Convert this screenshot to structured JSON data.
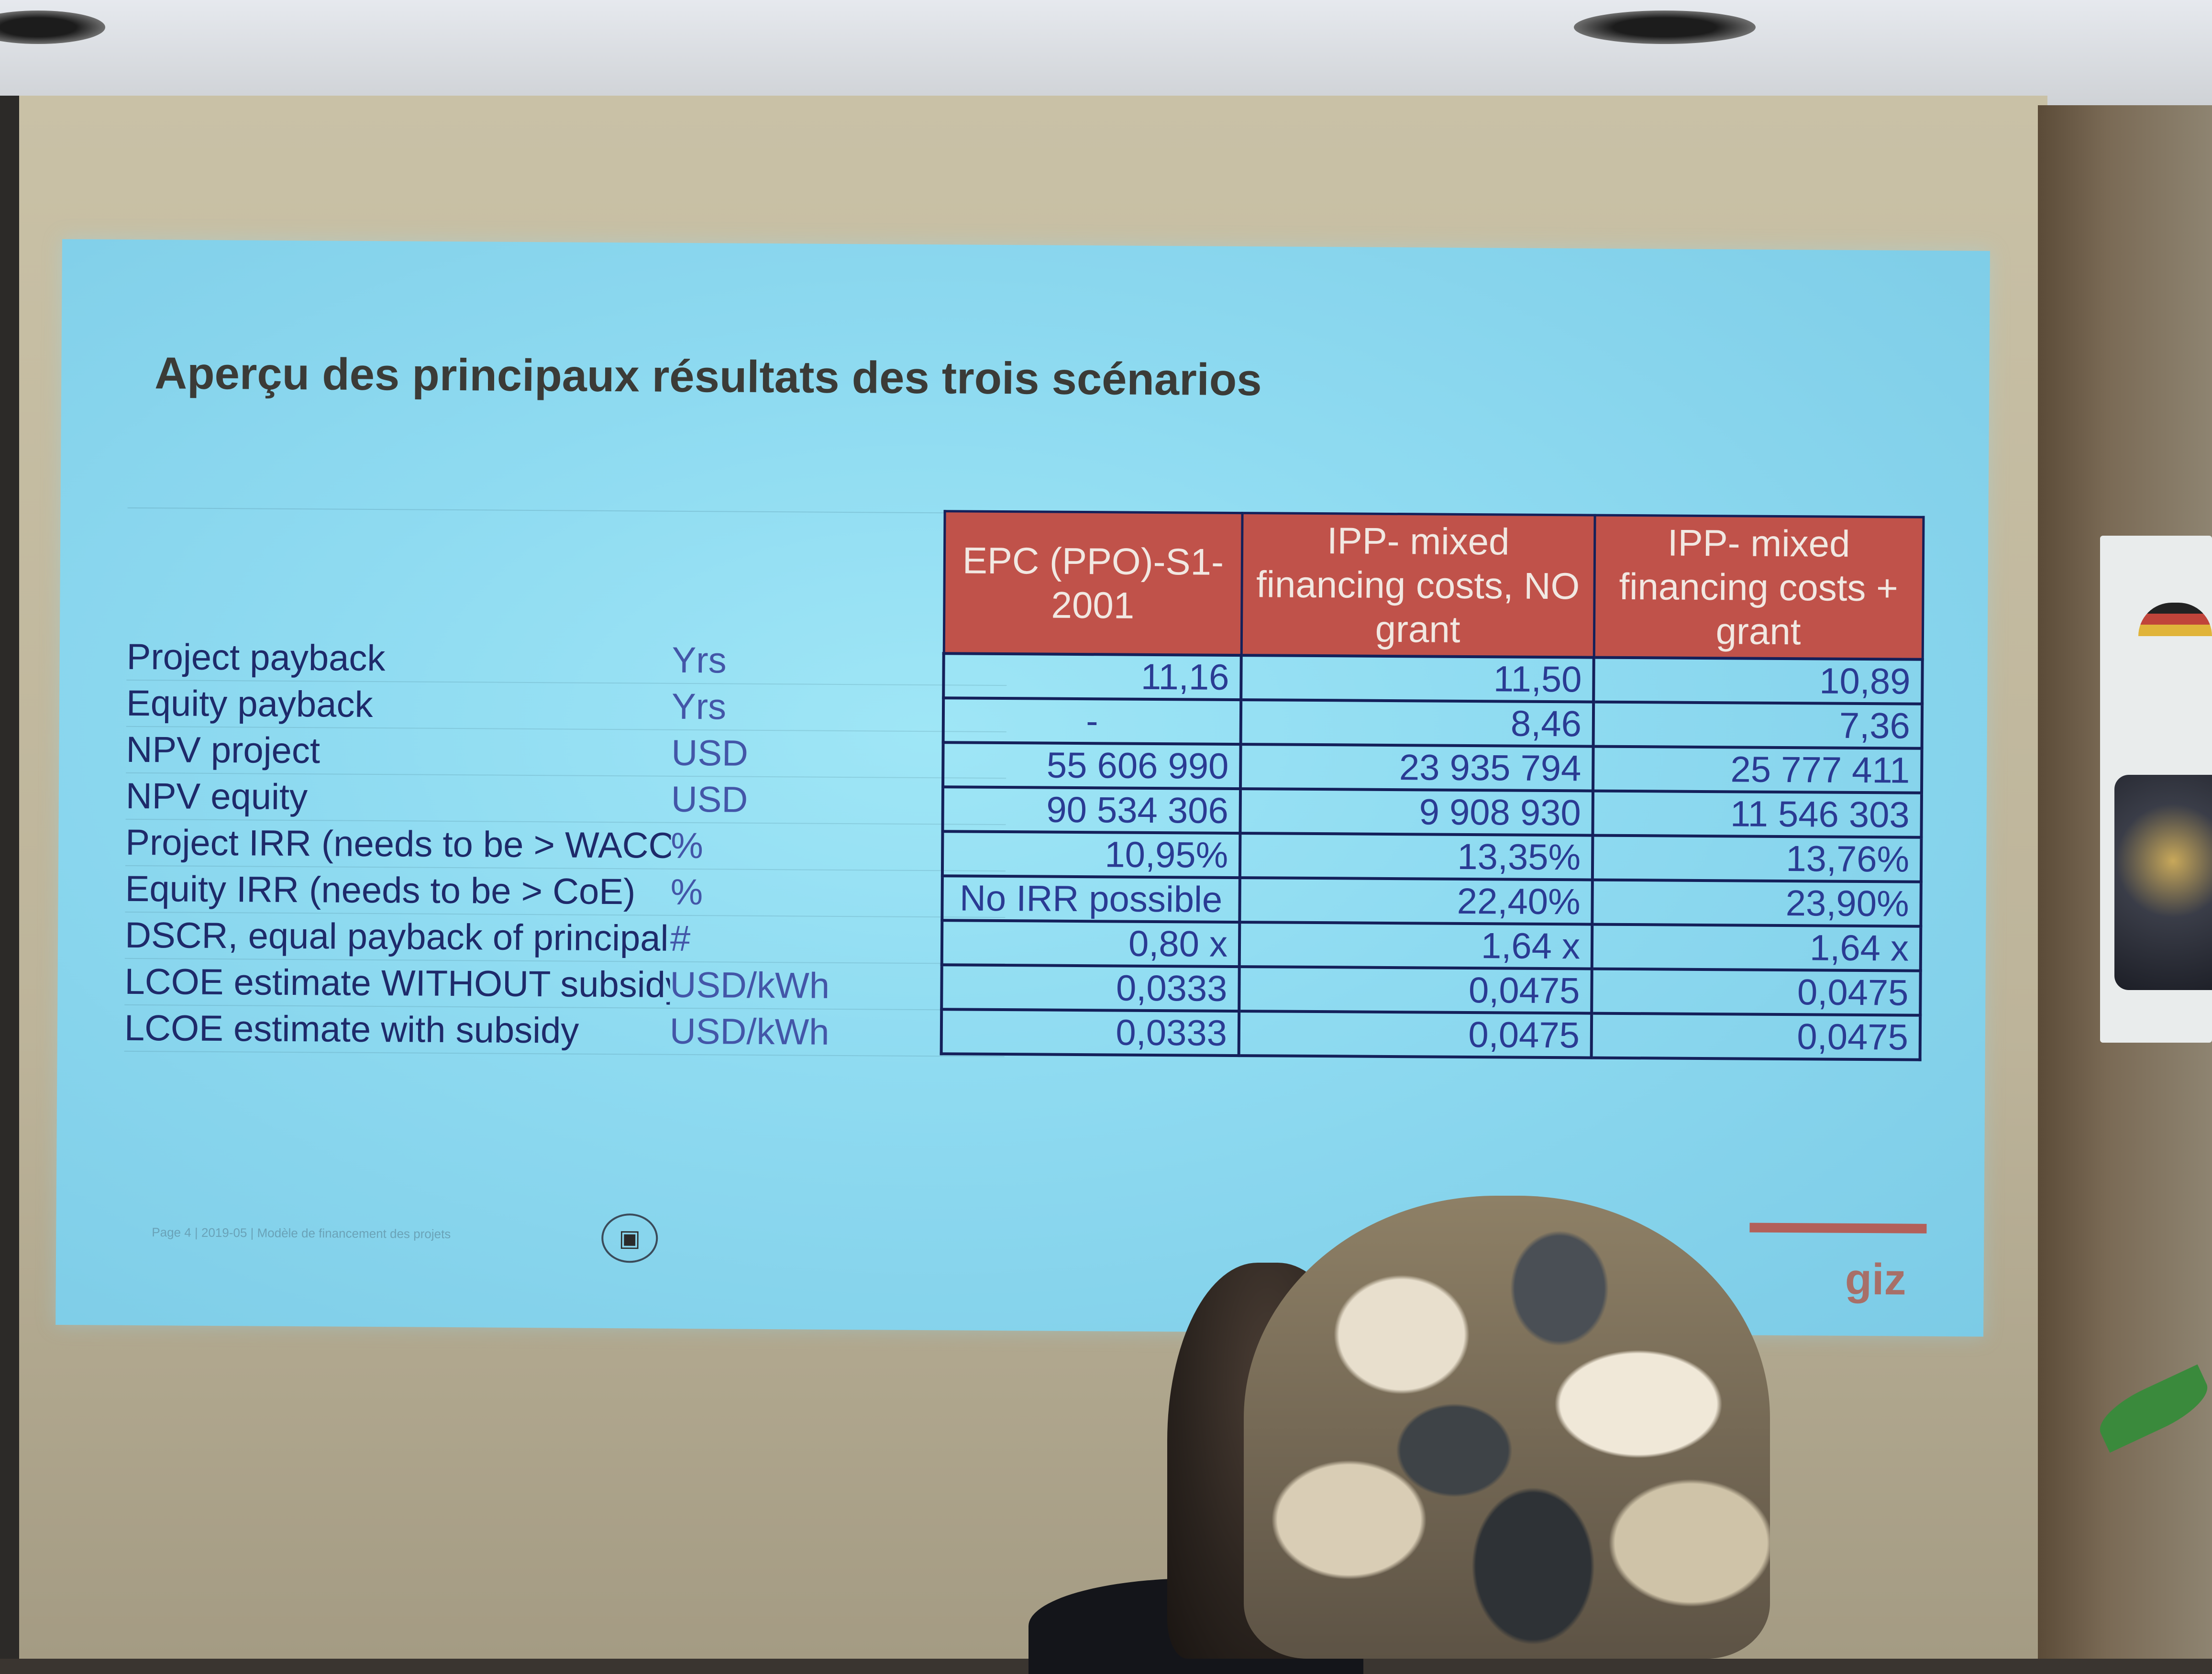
{
  "slide": {
    "title": "Aperçu des principaux résultats des trois scénarios",
    "columns": [
      "EPC (PPO)-S1-2001",
      "IPP- mixed financing costs, NO grant",
      "IPP- mixed financing costs + grant"
    ],
    "rows": [
      {
        "metric": "Project payback",
        "unit": "Yrs",
        "values": [
          "11,16",
          "11,50",
          "10,89"
        ]
      },
      {
        "metric": "Equity payback",
        "unit": "Yrs",
        "values": [
          "-",
          "8,46",
          "7,36"
        ]
      },
      {
        "metric": "NPV project",
        "unit": "USD",
        "values": [
          "55 606 990",
          "23 935 794",
          "25 777 411"
        ]
      },
      {
        "metric": "NPV equity",
        "unit": "USD",
        "values": [
          "90 534 306",
          "9 908 930",
          "11 546 303"
        ]
      },
      {
        "metric": "Project IRR (needs to be > WACC",
        "unit": "%",
        "values": [
          "10,95%",
          "13,35%",
          "13,76%"
        ]
      },
      {
        "metric": "Equity IRR (needs to be > CoE)",
        "unit": "%",
        "values": [
          "No IRR possible",
          "22,40%",
          "23,90%"
        ]
      },
      {
        "metric": "DSCR, equal payback of principal",
        "unit": "#",
        "values": [
          "0,80 x",
          "1,64 x",
          "1,64 x"
        ]
      },
      {
        "metric": "LCOE estimate WITHOUT subsidy",
        "unit": "USD/kWh",
        "values": [
          "0,0333",
          "0,0475",
          "0,0475"
        ]
      },
      {
        "metric": "LCOE estimate with subsidy",
        "unit": "USD/kWh",
        "values": [
          "0,0333",
          "0,0475",
          "0,0475"
        ]
      }
    ],
    "footer": {
      "page_text": "Page 4 | 2019-05 | Modèle de financement des projets",
      "logo": "giz"
    }
  },
  "colors": {
    "slide_bg": "#8fdbf1",
    "header_bg": "#c0524a",
    "table_border": "#14205a",
    "value_text": "#2a3b93"
  }
}
